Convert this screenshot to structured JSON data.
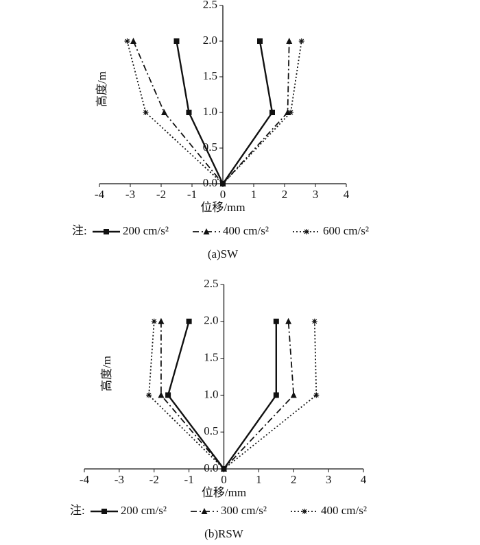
{
  "chart_data": [
    {
      "type": "line",
      "caption": "(a)SW",
      "xlabel": "位移/mm",
      "ylabel": "高度/m",
      "legend_prefix": "注:",
      "xlim": [
        -4,
        4
      ],
      "xticks": [
        -4,
        -3,
        -2,
        -1,
        0,
        1,
        2,
        3,
        4
      ],
      "ylim": [
        0,
        2.5
      ],
      "yticks": [
        {
          "value": 0,
          "label": "0.0"
        },
        0.5,
        {
          "value": 1,
          "label": "1.0"
        },
        1.5,
        {
          "value": 2,
          "label": "2.0"
        },
        2.5
      ],
      "series": [
        {
          "name": "200 cm/s²",
          "color": "#111111",
          "dash": "solid",
          "marker": "square",
          "x": [
            -1.5,
            -1.1,
            0,
            1.6,
            1.2
          ],
          "values": [
            2,
            1,
            0,
            1,
            2
          ]
        },
        {
          "name": "400 cm/s²",
          "color": "#111111",
          "dash": "dashdot",
          "marker": "triangle",
          "x": [
            -2.9,
            -1.9,
            0,
            2.1,
            2.15
          ],
          "values": [
            2,
            1,
            0,
            1,
            2
          ]
        },
        {
          "name": "600 cm/s²",
          "color": "#111111",
          "dash": "dotted",
          "marker": "star",
          "x": [
            -3.1,
            -2.5,
            0,
            2.2,
            2.55
          ],
          "values": [
            2,
            1,
            0,
            1,
            2
          ]
        }
      ]
    },
    {
      "type": "line",
      "caption": "(b)RSW",
      "xlabel": "位移/mm",
      "ylabel": "高度/m",
      "legend_prefix": "注:",
      "xlim": [
        -4,
        4
      ],
      "xticks": [
        -4,
        -3,
        -2,
        -1,
        0,
        1,
        2,
        3,
        4
      ],
      "ylim": [
        0,
        2.5
      ],
      "yticks": [
        {
          "value": 0,
          "label": "0.0"
        },
        0.5,
        {
          "value": 1,
          "label": "1.0"
        },
        1.5,
        {
          "value": 2,
          "label": "2.0"
        },
        2.5
      ],
      "series": [
        {
          "name": "200 cm/s²",
          "color": "#111111",
          "dash": "solid",
          "marker": "square",
          "x": [
            -1.0,
            -1.6,
            0,
            1.5,
            1.5
          ],
          "values": [
            2,
            1,
            0,
            1,
            2
          ]
        },
        {
          "name": "300 cm/s²",
          "color": "#111111",
          "dash": "dashdot",
          "marker": "triangle",
          "x": [
            -1.8,
            -1.8,
            0,
            2.0,
            1.85
          ],
          "values": [
            2,
            1,
            0,
            1,
            2
          ]
        },
        {
          "name": "400 cm/s²",
          "color": "#111111",
          "dash": "dotted",
          "marker": "star",
          "x": [
            -2.0,
            -2.15,
            0,
            2.65,
            2.6
          ],
          "values": [
            2,
            1,
            0,
            1,
            2
          ]
        }
      ]
    }
  ]
}
